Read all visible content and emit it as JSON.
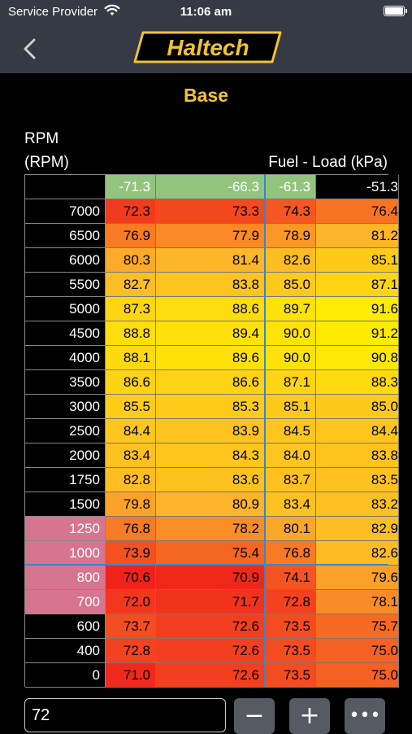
{
  "status_bar": {
    "carrier": "Service Provider",
    "time": "11:06 am"
  },
  "header": {
    "logo_text": "Haltech"
  },
  "title": "Base",
  "y_axis": {
    "label": "RPM",
    "unit": "(RPM)"
  },
  "x_axis": {
    "label": "Fuel - Load (kPa)"
  },
  "columns": [
    "-71.3",
    "-66.3",
    "-61.3",
    "-51.3"
  ],
  "rows": [
    {
      "rpm": "7000",
      "values": [
        "72.3",
        "73.3",
        "74.3",
        "76.4"
      ],
      "selected": false
    },
    {
      "rpm": "6500",
      "values": [
        "76.9",
        "77.9",
        "78.9",
        "81.2"
      ],
      "selected": false
    },
    {
      "rpm": "6000",
      "values": [
        "80.3",
        "81.4",
        "82.6",
        "85.1"
      ],
      "selected": false
    },
    {
      "rpm": "5500",
      "values": [
        "82.7",
        "83.8",
        "85.0",
        "87.1"
      ],
      "selected": false
    },
    {
      "rpm": "5000",
      "values": [
        "87.3",
        "88.6",
        "89.7",
        "91.6"
      ],
      "selected": false
    },
    {
      "rpm": "4500",
      "values": [
        "88.8",
        "89.4",
        "90.0",
        "91.2"
      ],
      "selected": false
    },
    {
      "rpm": "4000",
      "values": [
        "88.1",
        "89.6",
        "90.0",
        "90.8"
      ],
      "selected": false
    },
    {
      "rpm": "3500",
      "values": [
        "86.6",
        "86.6",
        "87.1",
        "88.3"
      ],
      "selected": false
    },
    {
      "rpm": "3000",
      "values": [
        "85.5",
        "85.3",
        "85.1",
        "85.0"
      ],
      "selected": false
    },
    {
      "rpm": "2500",
      "values": [
        "84.4",
        "83.9",
        "84.5",
        "84.4"
      ],
      "selected": false
    },
    {
      "rpm": "2000",
      "values": [
        "83.4",
        "84.3",
        "84.0",
        "83.8"
      ],
      "selected": false
    },
    {
      "rpm": "1750",
      "values": [
        "82.8",
        "83.6",
        "83.7",
        "83.5"
      ],
      "selected": false
    },
    {
      "rpm": "1500",
      "values": [
        "79.8",
        "80.9",
        "83.4",
        "83.2"
      ],
      "selected": false
    },
    {
      "rpm": "1250",
      "values": [
        "76.8",
        "78.2",
        "80.1",
        "82.9"
      ],
      "selected": true
    },
    {
      "rpm": "1000",
      "values": [
        "73.9",
        "75.4",
        "76.8",
        "82.6"
      ],
      "selected": true
    },
    {
      "rpm": "800",
      "values": [
        "70.6",
        "70.9",
        "74.1",
        "79.6"
      ],
      "selected": true
    },
    {
      "rpm": "700",
      "values": [
        "72.0",
        "71.7",
        "72.8",
        "78.1"
      ],
      "selected": true
    },
    {
      "rpm": "600",
      "values": [
        "73.7",
        "72.6",
        "73.5",
        "75.7"
      ],
      "selected": false
    },
    {
      "rpm": "400",
      "values": [
        "72.8",
        "72.6",
        "73.5",
        "75.0"
      ],
      "selected": false
    },
    {
      "rpm": "0",
      "values": [
        "71.0",
        "72.6",
        "73.5",
        "75.0"
      ],
      "selected": false
    }
  ],
  "selected_columns": [
    0,
    1,
    2
  ],
  "colors": {
    "heat_low": "#ee1b1b",
    "heat_mid": "#fdb42a",
    "heat_high": "#ffee00",
    "selected_row_header": "#d77490",
    "selected_column_header": "#93c47d",
    "cursor": "#3d85c6",
    "accent": "#f1c232"
  },
  "editor": {
    "value": "72",
    "minus_label": "−",
    "plus_label": "+",
    "more_label": "•••"
  }
}
